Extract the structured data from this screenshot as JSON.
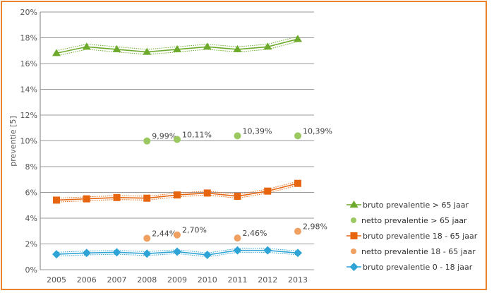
{
  "chart_data": {
    "type": "line",
    "title": "",
    "xlabel": "",
    "ylabel": "preventie [5]",
    "ylim": [
      0,
      20
    ],
    "yticks": [
      "0%",
      "2%",
      "4%",
      "6%",
      "8%",
      "10%",
      "12%",
      "14%",
      "16%",
      "18%",
      "20%"
    ],
    "ytick_values": [
      0,
      2,
      4,
      6,
      8,
      10,
      12,
      14,
      16,
      18,
      20
    ],
    "categories": [
      "2005",
      "2006",
      "2007",
      "2008",
      "2009",
      "2010",
      "2011",
      "2012",
      "2013"
    ],
    "grid": true,
    "legend_position": "right",
    "series": [
      {
        "name": "bruto prevalentie > 65 jaar",
        "kind": "line",
        "marker": "triangle",
        "color": "#6DAA2C",
        "band": 0.2,
        "values": [
          16.8,
          17.3,
          17.1,
          16.9,
          17.1,
          17.3,
          17.1,
          17.3,
          17.9
        ]
      },
      {
        "name": "netto prevalentie > 65 jaar",
        "kind": "points",
        "marker": "circle",
        "color": "#9CC861",
        "values": [
          null,
          null,
          null,
          9.99,
          10.11,
          null,
          10.39,
          null,
          10.39
        ],
        "labels": [
          null,
          null,
          null,
          "9,99%",
          "10,11%",
          null,
          "10,39%",
          null,
          "10,39%"
        ]
      },
      {
        "name": "bruto prevalentie 18 - 65 jaar",
        "kind": "line",
        "marker": "square",
        "color": "#E8650F",
        "band": 0.15,
        "values": [
          5.4,
          5.5,
          5.6,
          5.55,
          5.8,
          5.95,
          5.7,
          6.1,
          6.7
        ]
      },
      {
        "name": "netto prevalentie 18 - 65 jaar",
        "kind": "points",
        "marker": "circle",
        "color": "#F0A060",
        "values": [
          null,
          null,
          null,
          2.44,
          2.7,
          null,
          2.46,
          null,
          2.98
        ],
        "labels": [
          null,
          null,
          null,
          "2,44%",
          "2,70%",
          null,
          "2,46%",
          null,
          "2,98%"
        ]
      },
      {
        "name": "bruto prevalentie 0 - 18 jaar",
        "kind": "line",
        "marker": "diamond",
        "color": "#2EA3D6",
        "band": 0.15,
        "values": [
          1.2,
          1.3,
          1.35,
          1.25,
          1.4,
          1.15,
          1.5,
          1.5,
          1.3
        ]
      }
    ]
  }
}
